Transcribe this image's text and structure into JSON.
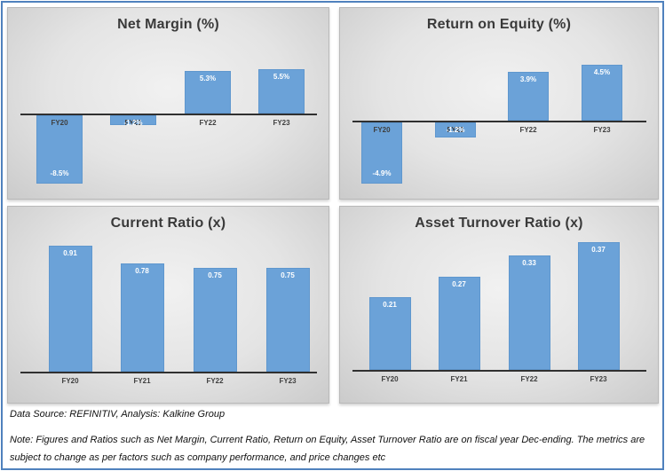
{
  "colors": {
    "frame_border": "#4f81bd",
    "bar_fill": "#6ba2d8",
    "bar_border": "#5f97ce",
    "title_text": "#3a3a3a",
    "category_text": "#3f3f3f",
    "value_text": "#ffffff",
    "axis_line": "#303030",
    "panel_bg_center": "#f1f1f1",
    "panel_bg_edge": "#cbcbcb"
  },
  "footer": {
    "source_line": "Data Source: REFINITIV, Analysis: Kalkine Group",
    "note_line": "Note: Figures and Ratios such as Net Margin, Current Ratio, Return on Equity, Asset Turnover Ratio  are on fiscal year Dec-ending. The metrics are subject to change as per factors such as company performance, and price changes etc"
  },
  "chart_data": [
    {
      "id": "net-margin",
      "type": "bar",
      "title": "Net Margin (%)",
      "categories": [
        "FY20",
        "FY21",
        "FY22",
        "FY23"
      ],
      "values": [
        -8.5,
        -1.2,
        5.3,
        5.5
      ],
      "labels": [
        "-8.5%",
        "-1.2%",
        "5.3%",
        "5.5%"
      ],
      "xlabel": "",
      "ylabel": "",
      "ylim": [
        -10,
        7
      ],
      "grid": false,
      "legend": "none",
      "label_note": "FY21 value label overlaps the FY21 category label inside the small negative bar"
    },
    {
      "id": "return-on-equity",
      "type": "bar",
      "title": "Return on Equity (%)",
      "categories": [
        "FY20",
        "FY21",
        "FY22",
        "FY23"
      ],
      "values": [
        -4.9,
        -1.2,
        3.9,
        4.5
      ],
      "labels": [
        "-4.9%",
        "-1.2%",
        "3.9%",
        "4.5%"
      ],
      "xlabel": "",
      "ylabel": "",
      "ylim": [
        -6,
        5.5
      ],
      "grid": false,
      "legend": "none",
      "label_note": "FY21 value label overlaps the FY21 category label inside the small negative bar"
    },
    {
      "id": "current-ratio",
      "type": "bar",
      "title": "Current Ratio (x)",
      "categories": [
        "FY20",
        "FY21",
        "FY22",
        "FY23"
      ],
      "values": [
        0.91,
        0.78,
        0.75,
        0.75
      ],
      "labels": [
        "0.91",
        "0.78",
        "0.75",
        "0.75"
      ],
      "xlabel": "",
      "ylabel": "",
      "ylim": [
        0,
        1.1
      ],
      "grid": false,
      "legend": "none"
    },
    {
      "id": "asset-turnover",
      "type": "bar",
      "title": "Asset Turnover Ratio (x)",
      "categories": [
        "FY20",
        "FY21",
        "FY22",
        "FY23"
      ],
      "values": [
        0.21,
        0.27,
        0.33,
        0.37
      ],
      "labels": [
        "0.21",
        "0.27",
        "0.33",
        "0.37"
      ],
      "xlabel": "",
      "ylabel": "",
      "ylim": [
        0,
        0.42
      ],
      "grid": false,
      "legend": "none"
    }
  ]
}
